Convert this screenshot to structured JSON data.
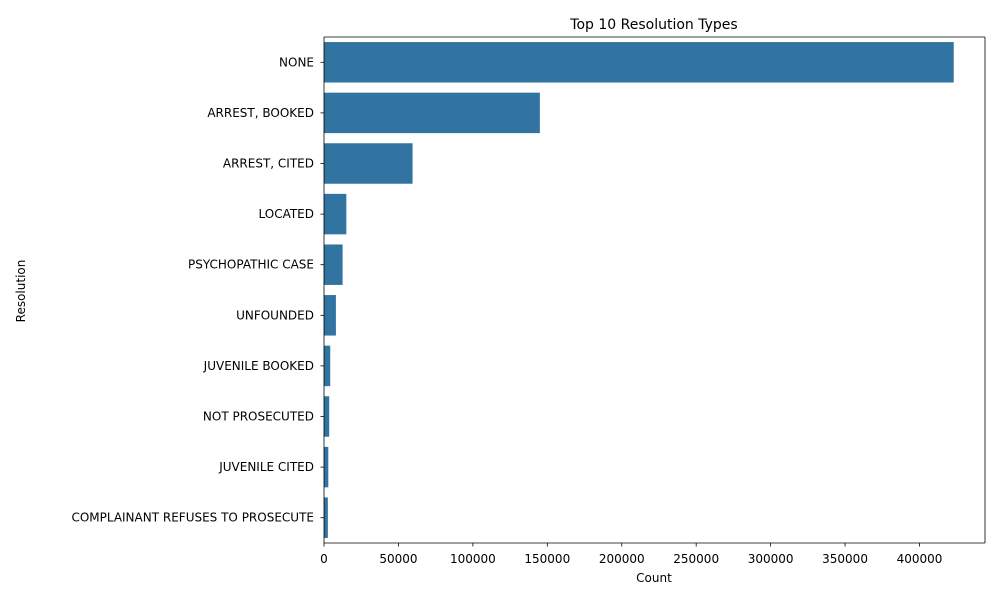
{
  "chart_data": {
    "type": "bar",
    "orientation": "horizontal",
    "title": "Top 10 Resolution Types",
    "xlabel": "Count",
    "ylabel": "Resolution",
    "categories": [
      "NONE",
      "ARREST, BOOKED",
      "ARREST, CITED",
      "LOCATED",
      "PSYCHOPATHIC CASE",
      "UNFOUNDED",
      "JUVENILE BOOKED",
      "NOT PROSECUTED",
      "JUVENILE CITED",
      "COMPLAINANT REFUSES TO PROSECUTE"
    ],
    "values": [
      423000,
      145000,
      59500,
      15000,
      12500,
      8000,
      4200,
      3500,
      2900,
      2600
    ],
    "xlim": [
      0,
      444000
    ],
    "xticks": [
      0,
      50000,
      100000,
      150000,
      200000,
      250000,
      300000,
      350000,
      400000
    ],
    "bar_color": "#3274a1",
    "grid": false
  }
}
